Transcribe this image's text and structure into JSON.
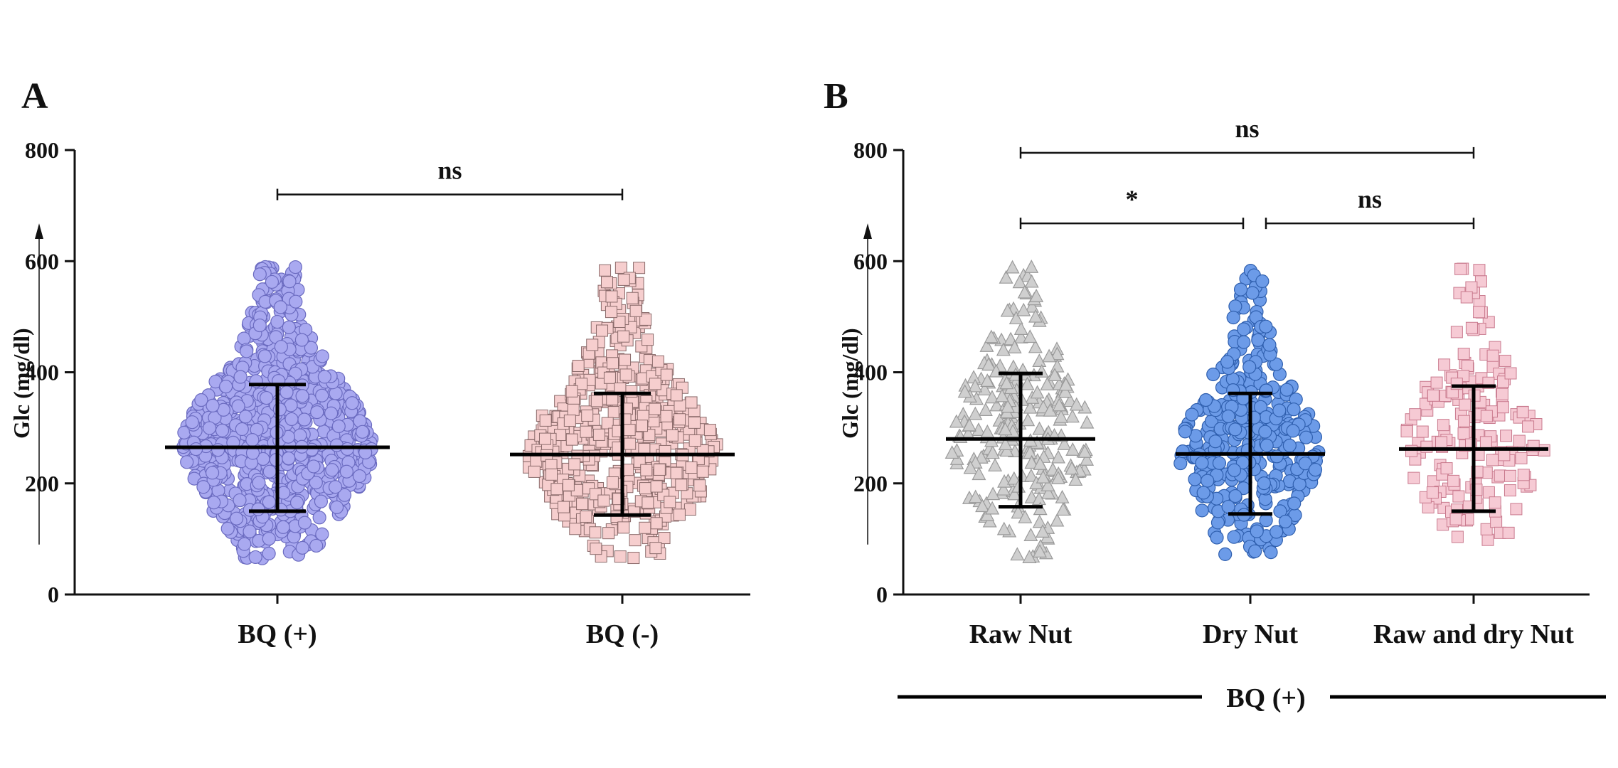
{
  "chart_data": [
    {
      "panel": "A",
      "type": "scatter",
      "ylabel": "Glc (mg/dl)",
      "ylim": [
        0,
        800
      ],
      "yticks": [
        0,
        200,
        400,
        600,
        800
      ],
      "categories": [
        "BQ (+)",
        "BQ (-)"
      ],
      "series": [
        {
          "name": "BQ (+)",
          "marker": "circle",
          "color": "#a9a9f0",
          "edge": "#6b6bc0",
          "mean": 265,
          "sd_low": 150,
          "sd_high": 378,
          "min": 60,
          "max": 590,
          "n": 900,
          "seed": 11
        },
        {
          "name": "BQ (-)",
          "marker": "square",
          "color": "#f6cece",
          "edge": "#8a6a6a",
          "mean": 252,
          "sd_low": 143,
          "sd_high": 362,
          "min": 65,
          "max": 590,
          "n": 520,
          "seed": 23
        }
      ],
      "significance": [
        {
          "from": 0,
          "to": 1,
          "label": "ns",
          "y": 720
        }
      ]
    },
    {
      "panel": "B",
      "type": "scatter",
      "ylabel": "Glc (mg/dl)",
      "ylim": [
        0,
        800
      ],
      "yticks": [
        0,
        200,
        400,
        600,
        800
      ],
      "categories": [
        "Raw Nut",
        "Dry Nut",
        "Raw and dry Nut"
      ],
      "group_label": "BQ (+)",
      "series": [
        {
          "name": "Raw Nut",
          "marker": "triangle",
          "color": "#cfcfcf",
          "edge": "#9a9a9a",
          "mean": 280,
          "sd_low": 158,
          "sd_high": 398,
          "min": 60,
          "max": 590,
          "n": 260,
          "seed": 37
        },
        {
          "name": "Dry Nut",
          "marker": "circle",
          "color": "#6c9be8",
          "edge": "#2f5fae",
          "mean": 253,
          "sd_low": 145,
          "sd_high": 362,
          "min": 60,
          "max": 585,
          "n": 340,
          "seed": 51
        },
        {
          "name": "Raw and dry Nut",
          "marker": "square",
          "color": "#f6cad4",
          "edge": "#c97a8e",
          "mean": 262,
          "sd_low": 150,
          "sd_high": 375,
          "min": 85,
          "max": 590,
          "n": 170,
          "seed": 73
        }
      ],
      "significance": [
        {
          "from": 0,
          "to": 2,
          "label": "ns",
          "y": 795
        },
        {
          "from": 0,
          "to": 1,
          "label": "*",
          "y": 668
        },
        {
          "from": 1,
          "to": 2,
          "label": "ns",
          "y": 668
        }
      ]
    }
  ]
}
